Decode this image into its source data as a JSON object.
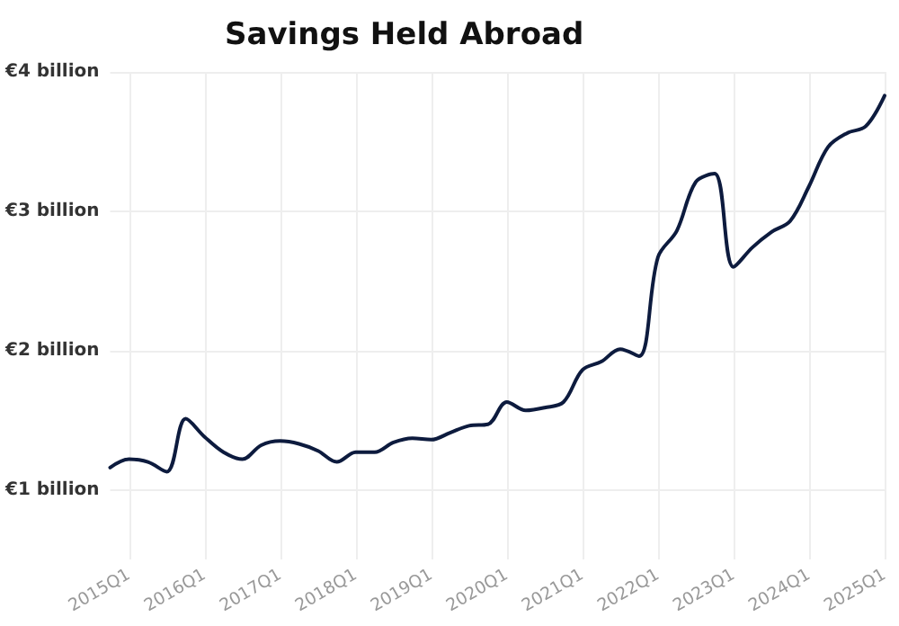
{
  "chart_data": {
    "type": "line",
    "title": "Savings Held Abroad",
    "categories": [
      null,
      "2015Q1",
      null,
      null,
      null,
      "2016Q1",
      null,
      null,
      null,
      "2017Q1",
      null,
      null,
      null,
      "2018Q1",
      null,
      null,
      null,
      "2019Q1",
      null,
      null,
      null,
      "2020Q1",
      null,
      null,
      null,
      "2021Q1",
      null,
      null,
      null,
      "2022Q1",
      null,
      null,
      null,
      "2023Q1",
      null,
      null,
      null,
      "2024Q1",
      null,
      null,
      null,
      "2025Q1"
    ],
    "series": [
      {
        "color": "#0d1b3e",
        "values": [
          1.16,
          1.22,
          1.2,
          1.13,
          1.51,
          1.38,
          1.27,
          1.22,
          1.32,
          1.35,
          1.33,
          1.28,
          1.2,
          1.27,
          1.27,
          1.34,
          1.37,
          1.36,
          1.41,
          1.46,
          1.47,
          1.63,
          1.57,
          1.59,
          1.63,
          1.86,
          1.92,
          2.01,
          1.96,
          2.67,
          2.86,
          3.21,
          3.27,
          2.6,
          2.74,
          2.85,
          2.93,
          3.18,
          3.46,
          3.56,
          3.61,
          3.83
        ]
      }
    ],
    "ylim": [
      0.5,
      4
    ],
    "yticks": [
      {
        "value": 1,
        "label": "€1 billion"
      },
      {
        "value": 2,
        "label": "€2 billion"
      },
      {
        "value": 3,
        "label": "€3 billion"
      },
      {
        "value": 4,
        "label": "€4 billion"
      }
    ],
    "grid": true,
    "marker": "none",
    "line_style": "solid"
  }
}
